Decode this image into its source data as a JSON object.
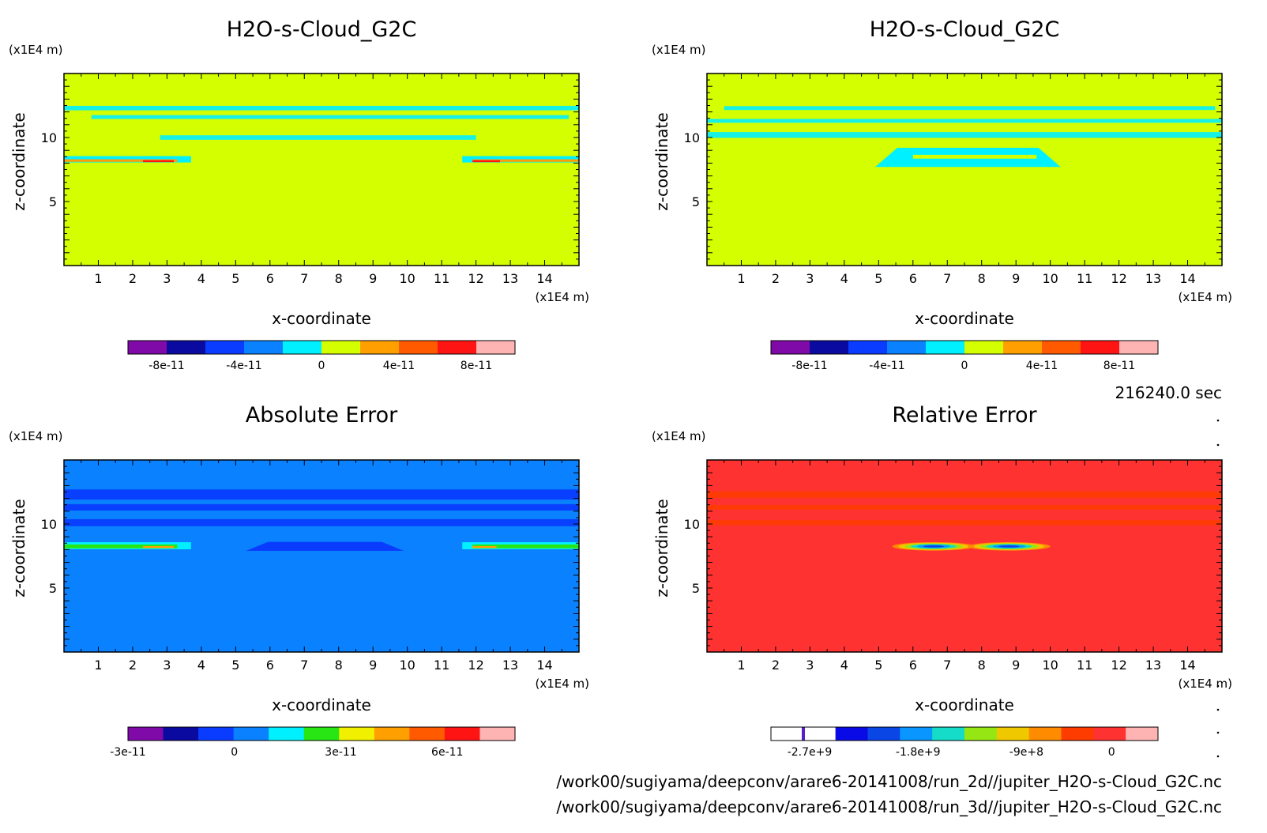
{
  "footer": {
    "time": "216240.0 sec",
    "file_2d": "/work00/sugiyama/deepconv/arare6-20141008/run_2d//jupiter_H2O-s-Cloud_G2C.nc",
    "file_3d": "/work00/sugiyama/deepconv/arare6-20141008/run_3d//jupiter_H2O-s-Cloud_G2C.nc"
  },
  "chart_data": [
    {
      "type": "heatmap",
      "title": "H2O-s-Cloud_G2C",
      "xlabel": "x-coordinate",
      "ylabel": "z-coordinate",
      "x_unit": "(x1E4 m)",
      "y_unit": "(x1E4 m)",
      "xlim": [
        0,
        15
      ],
      "ylim": [
        0,
        15
      ],
      "x_ticks": [
        "1",
        "2",
        "3",
        "4",
        "5",
        "6",
        "7",
        "8",
        "9",
        "10",
        "11",
        "12",
        "13",
        "14"
      ],
      "y_ticks": [
        "5",
        "10"
      ],
      "background": "#d4ff00",
      "colorbar": {
        "colors": [
          "#7f0aa8",
          "#0a0aa0",
          "#0a3cff",
          "#0a82ff",
          "#00f0ff",
          "#d4ff00",
          "#ffa000",
          "#ff5a00",
          "#ff1414",
          "#ffb4b4"
        ],
        "labels": [
          "-8e-11",
          "-4e-11",
          "0",
          "4e-11",
          "8e-11"
        ]
      },
      "features": "cyan cloud-edge bands near z=10-12; orange/red streaks near z=8 at x=2.5-3.7 and x=11.5-15"
    },
    {
      "type": "heatmap",
      "title": "H2O-s-Cloud_G2C",
      "xlabel": "x-coordinate",
      "ylabel": "z-coordinate",
      "x_unit": "(x1E4 m)",
      "y_unit": "(x1E4 m)",
      "xlim": [
        0,
        15
      ],
      "ylim": [
        0,
        15
      ],
      "x_ticks": [
        "1",
        "2",
        "3",
        "4",
        "5",
        "6",
        "7",
        "8",
        "9",
        "10",
        "11",
        "12",
        "13",
        "14"
      ],
      "y_ticks": [
        "5",
        "10"
      ],
      "background": "#d4ff00",
      "colorbar": {
        "colors": [
          "#7f0aa8",
          "#0a0aa0",
          "#0a3cff",
          "#0a82ff",
          "#00f0ff",
          "#d4ff00",
          "#ffa000",
          "#ff5a00",
          "#ff1414",
          "#ffb4b4"
        ],
        "labels": [
          "-8e-11",
          "-4e-11",
          "0",
          "4e-11",
          "8e-11"
        ]
      },
      "features": "cyan bands near z=10-12; cyan dome near z=8 between x=5 and x=10"
    },
    {
      "type": "heatmap",
      "title": "Absolute Error",
      "xlabel": "x-coordinate",
      "ylabel": "z-coordinate",
      "x_unit": "(x1E4 m)",
      "y_unit": "(x1E4 m)",
      "xlim": [
        0,
        15
      ],
      "ylim": [
        0,
        15
      ],
      "x_ticks": [
        "1",
        "2",
        "3",
        "4",
        "5",
        "6",
        "7",
        "8",
        "9",
        "10",
        "11",
        "12",
        "13",
        "14"
      ],
      "y_ticks": [
        "5",
        "10"
      ],
      "background": "#0a82ff",
      "colorbar": {
        "colors": [
          "#7f0aa8",
          "#0a0aa0",
          "#0a3cff",
          "#0a82ff",
          "#00f0ff",
          "#28e614",
          "#f0f000",
          "#ffa000",
          "#ff5a00",
          "#ff1414",
          "#ffb4b4"
        ],
        "labels": [
          "-3e-11",
          "0",
          "3e-11",
          "6e-11"
        ]
      },
      "features": "darker blue bands near z=10-12; blue dome near z=8 at x=5.3-9.8; green/orange streaks near z=8"
    },
    {
      "type": "heatmap",
      "title": "Relative Error",
      "xlabel": "x-coordinate",
      "ylabel": "z-coordinate",
      "x_unit": "(x1E4 m)",
      "y_unit": "(x1E4 m)",
      "xlim": [
        0,
        15
      ],
      "ylim": [
        0,
        15
      ],
      "x_ticks": [
        "1",
        "2",
        "3",
        "4",
        "5",
        "6",
        "7",
        "8",
        "9",
        "10",
        "11",
        "12",
        "13",
        "14"
      ],
      "y_ticks": [
        "5",
        "10"
      ],
      "background": "#ff3232",
      "colorbar": {
        "colors": [
          "#ffffff",
          "#ffffff",
          "#0a0ae6",
          "#0a46e6",
          "#0a96ff",
          "#14dcc8",
          "#96e614",
          "#f0c800",
          "#ff8c00",
          "#ff3c00",
          "#ff3232",
          "#ffb4b4"
        ],
        "labels": [
          "-2.7e+9",
          "-1.8e+9",
          "-9e+8",
          "0"
        ]
      },
      "features": "orange-red bands near z=10-12; multicolor lens near z=8.3 between x=5.3 and x=10"
    }
  ]
}
